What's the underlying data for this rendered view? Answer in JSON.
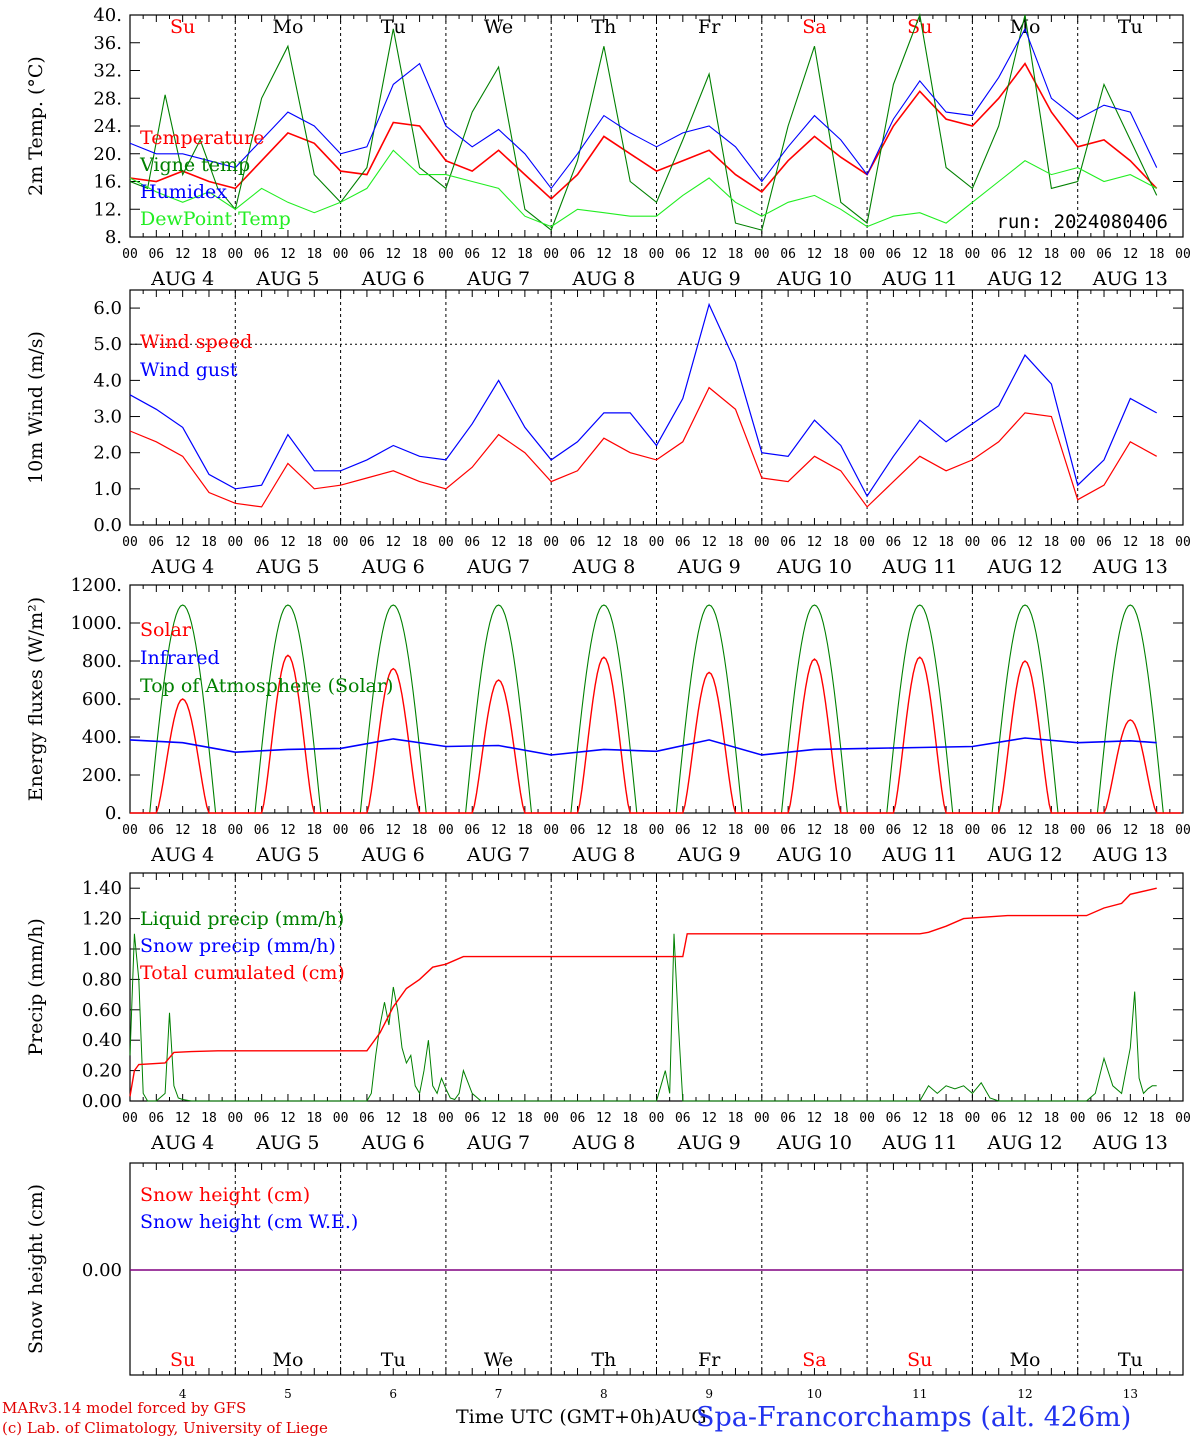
{
  "run_label": "run: 2024080406",
  "footer": {
    "credit_model": "MARv3.14 model forced by GFS",
    "credit_lab": "(c) Lab. of Climatology, University of Liege",
    "x_title": "Time UTC (GMT+0h)",
    "x_suffix": "AUG",
    "station": "Spa-Francorchamps (alt. 426m)"
  },
  "colors": {
    "red": "#ff0000",
    "green": "#008000",
    "blue": "#0000ff",
    "lightgreen": "#22ee22",
    "purple": "#800080"
  },
  "weekdays": [
    "Su",
    "Mo",
    "Tu",
    "We",
    "Th",
    "Fr",
    "Sa",
    "Su",
    "Mo",
    "Tu"
  ],
  "weekday_colors": [
    "red",
    "black",
    "black",
    "black",
    "black",
    "black",
    "red",
    "red",
    "black",
    "black"
  ],
  "hour_ticks": [
    "00",
    "06",
    "12",
    "18"
  ],
  "date_labels": [
    "AUG  4",
    "AUG  5",
    "AUG  6",
    "AUG  7",
    "AUG  8",
    "AUG  9",
    "AUG 10",
    "AUG 11",
    "AUG 12",
    "AUG 13"
  ],
  "bottom_day_numbers": [
    "4",
    "5",
    "6",
    "7",
    "8",
    "9",
    "10",
    "11",
    "12",
    "13"
  ],
  "chart_data": [
    {
      "type": "line",
      "ylabel": "2m Temp. (°C)",
      "ylim": [
        8,
        40
      ],
      "yticks": [
        "8.",
        "12.",
        "16.",
        "20.",
        "24.",
        "28.",
        "32.",
        "36.",
        "40."
      ],
      "x_hours_start": 0,
      "series": [
        {
          "name": "Temperature",
          "color": "red",
          "x": [
            0,
            6,
            12,
            18,
            24,
            30,
            36,
            42,
            48,
            54,
            60,
            66,
            72,
            78,
            84,
            90,
            96,
            102,
            108,
            114,
            120,
            126,
            132,
            138,
            144,
            150,
            156,
            162,
            168,
            174,
            180,
            186,
            192,
            198,
            204,
            210,
            216,
            222,
            228,
            234
          ],
          "values": [
            16.5,
            16,
            17.5,
            16,
            15,
            19,
            23,
            21.5,
            17.5,
            17,
            24.5,
            24,
            19,
            17.5,
            20.5,
            17,
            13.5,
            17,
            22.5,
            20,
            17.5,
            19,
            20.5,
            17,
            14.5,
            19,
            22.5,
            19.5,
            17,
            24,
            29,
            25,
            24,
            28,
            33,
            26,
            21,
            22,
            19,
            15
          ]
        },
        {
          "name": "Vigne temp",
          "color": "green",
          "x": [
            0,
            4,
            8,
            12,
            16,
            20,
            24,
            30,
            36,
            42,
            48,
            54,
            60,
            66,
            72,
            78,
            84,
            90,
            96,
            102,
            108,
            114,
            120,
            126,
            132,
            138,
            144,
            150,
            156,
            162,
            168,
            174,
            180,
            186,
            192,
            198,
            204,
            210,
            216,
            222,
            228,
            234
          ],
          "values": [
            16,
            15,
            28.5,
            17,
            22,
            15,
            12,
            28,
            35.5,
            17,
            13,
            18,
            38,
            18,
            15,
            26,
            32.5,
            12,
            9,
            19,
            35.5,
            16,
            13,
            22,
            31.5,
            10,
            9,
            24,
            35.5,
            13,
            10,
            30,
            40,
            18,
            15,
            24,
            40,
            15,
            16,
            30,
            22,
            14
          ]
        },
        {
          "name": "Humidex",
          "color": "blue",
          "x": [
            0,
            6,
            12,
            18,
            24,
            30,
            36,
            42,
            48,
            54,
            60,
            66,
            72,
            78,
            84,
            90,
            96,
            102,
            108,
            114,
            120,
            126,
            132,
            138,
            144,
            150,
            156,
            162,
            168,
            174,
            180,
            186,
            192,
            198,
            204,
            210,
            216,
            222,
            228,
            234
          ],
          "values": [
            21.5,
            20,
            20,
            19,
            18,
            22,
            26,
            24,
            20,
            21,
            30,
            33,
            24,
            21,
            23.5,
            20,
            15,
            20,
            25.5,
            23,
            21,
            23,
            24,
            21,
            16,
            21,
            25.5,
            22,
            17,
            25,
            30.5,
            26,
            25.5,
            31,
            38,
            28,
            25,
            27,
            26,
            18
          ]
        },
        {
          "name": "DewPoint Temp",
          "color": "lightgreen",
          "x": [
            0,
            6,
            12,
            18,
            24,
            30,
            36,
            42,
            48,
            54,
            60,
            66,
            72,
            78,
            84,
            90,
            96,
            102,
            108,
            114,
            120,
            126,
            132,
            138,
            144,
            150,
            156,
            162,
            168,
            174,
            180,
            186,
            192,
            198,
            204,
            210,
            216,
            222,
            228,
            234
          ],
          "values": [
            16.5,
            14.5,
            13,
            14.5,
            12,
            15,
            13,
            11.5,
            13,
            15,
            20.5,
            17,
            17,
            16,
            15,
            11,
            9.5,
            12,
            11.5,
            11,
            11,
            14,
            16.5,
            13,
            11,
            13,
            14,
            12,
            9.5,
            11,
            11.5,
            10,
            13,
            16,
            19,
            17,
            18,
            16,
            17,
            15
          ]
        }
      ],
      "legend": [
        "Temperature",
        "Vigne temp",
        "Humidex",
        "DewPoint Temp"
      ]
    },
    {
      "type": "line",
      "ylabel": "10m Wind (m/s)",
      "ylim": [
        0,
        6.5
      ],
      "yticks": [
        "0.0",
        "1.0",
        "2.0",
        "3.0",
        "4.0",
        "5.0",
        "6.0"
      ],
      "reference_line": 5.0,
      "series": [
        {
          "name": "Wind speed",
          "color": "red",
          "x": [
            0,
            6,
            12,
            18,
            24,
            30,
            36,
            42,
            48,
            54,
            60,
            66,
            72,
            78,
            84,
            90,
            96,
            102,
            108,
            114,
            120,
            126,
            132,
            138,
            144,
            150,
            156,
            162,
            168,
            174,
            180,
            186,
            192,
            198,
            204,
            210,
            216,
            222,
            228,
            234
          ],
          "values": [
            2.6,
            2.3,
            1.9,
            0.9,
            0.6,
            0.5,
            1.7,
            1.0,
            1.1,
            1.3,
            1.5,
            1.2,
            1.0,
            1.6,
            2.5,
            2.0,
            1.2,
            1.5,
            2.4,
            2.0,
            1.8,
            2.3,
            3.8,
            3.2,
            1.3,
            1.2,
            1.9,
            1.5,
            0.5,
            1.2,
            1.9,
            1.5,
            1.8,
            2.3,
            3.1,
            3.0,
            0.7,
            1.1,
            2.3,
            1.9
          ]
        },
        {
          "name": "Wind gust",
          "color": "blue",
          "x": [
            0,
            6,
            12,
            18,
            24,
            30,
            36,
            42,
            48,
            54,
            60,
            66,
            72,
            78,
            84,
            90,
            96,
            102,
            108,
            114,
            120,
            126,
            132,
            138,
            144,
            150,
            156,
            162,
            168,
            174,
            180,
            186,
            192,
            198,
            204,
            210,
            216,
            222,
            228,
            234
          ],
          "values": [
            3.6,
            3.2,
            2.7,
            1.4,
            1.0,
            1.1,
            2.5,
            1.5,
            1.5,
            1.8,
            2.2,
            1.9,
            1.8,
            2.8,
            4.0,
            2.7,
            1.8,
            2.3,
            3.1,
            3.1,
            2.2,
            3.5,
            6.1,
            4.5,
            2.0,
            1.9,
            2.9,
            2.2,
            0.8,
            1.9,
            2.9,
            2.3,
            2.8,
            3.3,
            4.7,
            3.9,
            1.1,
            1.8,
            3.5,
            3.1
          ]
        }
      ],
      "legend": [
        "Wind speed",
        "Wind gust"
      ]
    },
    {
      "type": "line",
      "ylabel": "Energy fluxes (W/m²)",
      "ylim": [
        0,
        1200
      ],
      "yticks": [
        "0.",
        "200.",
        "400.",
        "600.",
        "800.",
        "1000.",
        "1200."
      ],
      "solar_peaks": [
        600,
        830,
        760,
        700,
        820,
        740,
        810,
        820,
        800,
        490
      ],
      "toa_peak": 1095,
      "sunrise_hour": 4.5,
      "sunset_hour": 19.5,
      "infrared": {
        "x": [
          0,
          12,
          24,
          36,
          48,
          60,
          72,
          84,
          96,
          108,
          120,
          132,
          144,
          156,
          168,
          180,
          192,
          204,
          216,
          228,
          234
        ],
        "values": [
          385,
          370,
          320,
          335,
          340,
          390,
          350,
          355,
          305,
          335,
          325,
          385,
          305,
          335,
          340,
          345,
          350,
          395,
          370,
          380,
          370
        ]
      },
      "series_names": [
        "Solar",
        "Infrared",
        "Top of Atmosphere (Solar)"
      ],
      "legend": [
        "Solar",
        "Infrared",
        "Top of Atmosphere (Solar)"
      ]
    },
    {
      "type": "line",
      "ylabel": "Precip (mm/h)",
      "ylim": [
        0,
        1.5
      ],
      "yticks": [
        "0.00",
        "0.20",
        "0.40",
        "0.60",
        "0.80",
        "1.00",
        "1.20",
        "1.40"
      ],
      "series": [
        {
          "name": "Liquid precip (mm/h)",
          "color": "green",
          "x": [
            0,
            1,
            2,
            3,
            4,
            5,
            6,
            8,
            9,
            10,
            11,
            12,
            14,
            18,
            54,
            55,
            56,
            57,
            58,
            59,
            60,
            61,
            62,
            63,
            64,
            65,
            66,
            67,
            68,
            69,
            70,
            71,
            72,
            73,
            74,
            75,
            76,
            78,
            80,
            82,
            84,
            120,
            121,
            122,
            123,
            124,
            125,
            126,
            127,
            128,
            180,
            182,
            184,
            186,
            188,
            190,
            192,
            194,
            196,
            198,
            200,
            218,
            220,
            222,
            224,
            226,
            228,
            229,
            230,
            231,
            232,
            233,
            234
          ],
          "values": [
            0.3,
            1.1,
            0.8,
            0.05,
            0,
            0,
            0,
            0.05,
            0.58,
            0.1,
            0.02,
            0.01,
            0,
            0,
            0,
            0.05,
            0.3,
            0.5,
            0.65,
            0.5,
            0.75,
            0.6,
            0.35,
            0.25,
            0.3,
            0.1,
            0.05,
            0.2,
            0.4,
            0.1,
            0.05,
            0.15,
            0.08,
            0.02,
            0.01,
            0.05,
            0.2,
            0.05,
            0,
            0,
            0,
            0,
            0.1,
            0.2,
            0.05,
            1.1,
            0.5,
            0,
            0,
            0,
            0,
            0.1,
            0.05,
            0.1,
            0.08,
            0.1,
            0.05,
            0.12,
            0.02,
            0,
            0,
            0,
            0.05,
            0.28,
            0.1,
            0.05,
            0.35,
            0.72,
            0.15,
            0.05,
            0.08,
            0.1,
            0.1
          ]
        },
        {
          "name": "Total cumulated (cm)",
          "color": "red",
          "x": [
            0,
            1,
            2,
            8,
            10,
            14,
            20,
            30,
            54,
            57,
            60,
            63,
            66,
            69,
            72,
            76,
            82,
            90,
            126,
            127,
            180,
            182,
            186,
            190,
            200,
            218,
            222,
            226,
            228,
            234
          ],
          "values": [
            0.03,
            0.2,
            0.24,
            0.25,
            0.32,
            0.325,
            0.33,
            0.33,
            0.33,
            0.45,
            0.62,
            0.74,
            0.8,
            0.88,
            0.9,
            0.95,
            0.95,
            0.95,
            0.95,
            1.1,
            1.1,
            1.11,
            1.15,
            1.2,
            1.22,
            1.22,
            1.27,
            1.3,
            1.36,
            1.4
          ]
        }
      ],
      "legend": [
        "Liquid precip (mm/h)",
        "Snow precip (mm/h)",
        "Total cumulated (cm)"
      ]
    },
    {
      "type": "line",
      "ylabel": "Snow height (cm)",
      "ytick": "0.00",
      "series": [
        {
          "name": "Snow height (cm)",
          "value": 0
        }
      ],
      "legend": [
        "Snow height (cm)",
        "Snow height (cm W.E.)"
      ]
    }
  ]
}
